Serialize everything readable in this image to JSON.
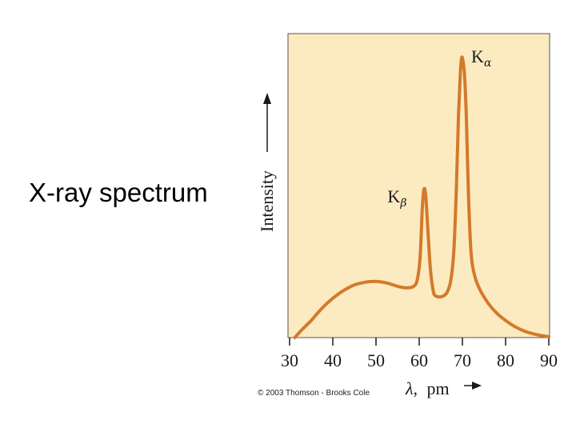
{
  "slide": {
    "title": "X-ray spectrum"
  },
  "copyright": "© 2003 Thomson - Brooks Cole",
  "colors": {
    "plot_background": "#fcebc0",
    "curve": "#d37a2b",
    "axis": "#555555"
  },
  "chart_data": {
    "type": "line",
    "title": "",
    "xlabel_symbol": "λ,",
    "xlabel_unit": "pm",
    "ylabel": "Intensity",
    "xlim": [
      30,
      90
    ],
    "ylim": [
      0,
      100
    ],
    "x_ticks": [
      30,
      40,
      50,
      60,
      70,
      80,
      90
    ],
    "y_ticks_shown": false,
    "grid": false,
    "annotations": [
      {
        "base": "K",
        "sub": "β",
        "x": 61,
        "y": 52
      },
      {
        "base": "K",
        "sub": "α",
        "x": 70,
        "y": 98
      }
    ],
    "series": [
      {
        "x": [
          31.2,
          33,
          35,
          37,
          39,
          41,
          43,
          45,
          47,
          49,
          51,
          53,
          55,
          57,
          58.5,
          59.5,
          60.2,
          60.7,
          61.1,
          61.5,
          62,
          62.6,
          63.3,
          64,
          64.8,
          65.6,
          66.5,
          67.3,
          68,
          68.6,
          69.1,
          69.5,
          69.8,
          70.1,
          70.5,
          70.9,
          71.4,
          72,
          72.8,
          74,
          76,
          78,
          80,
          82,
          84,
          86,
          88,
          90
        ],
        "y": [
          0,
          3,
          6,
          9.5,
          12.5,
          15,
          17,
          18.5,
          19.3,
          19.7,
          19.6,
          19,
          18,
          17.5,
          17.8,
          20,
          28,
          45,
          52,
          50,
          38,
          24,
          16,
          14.5,
          14.3,
          14.6,
          16,
          20,
          30,
          52,
          78,
          92,
          98,
          97.5,
          92,
          78,
          50,
          30,
          22,
          17,
          12,
          8.5,
          6,
          4,
          2.5,
          1.5,
          0.8,
          0.3
        ]
      }
    ]
  }
}
